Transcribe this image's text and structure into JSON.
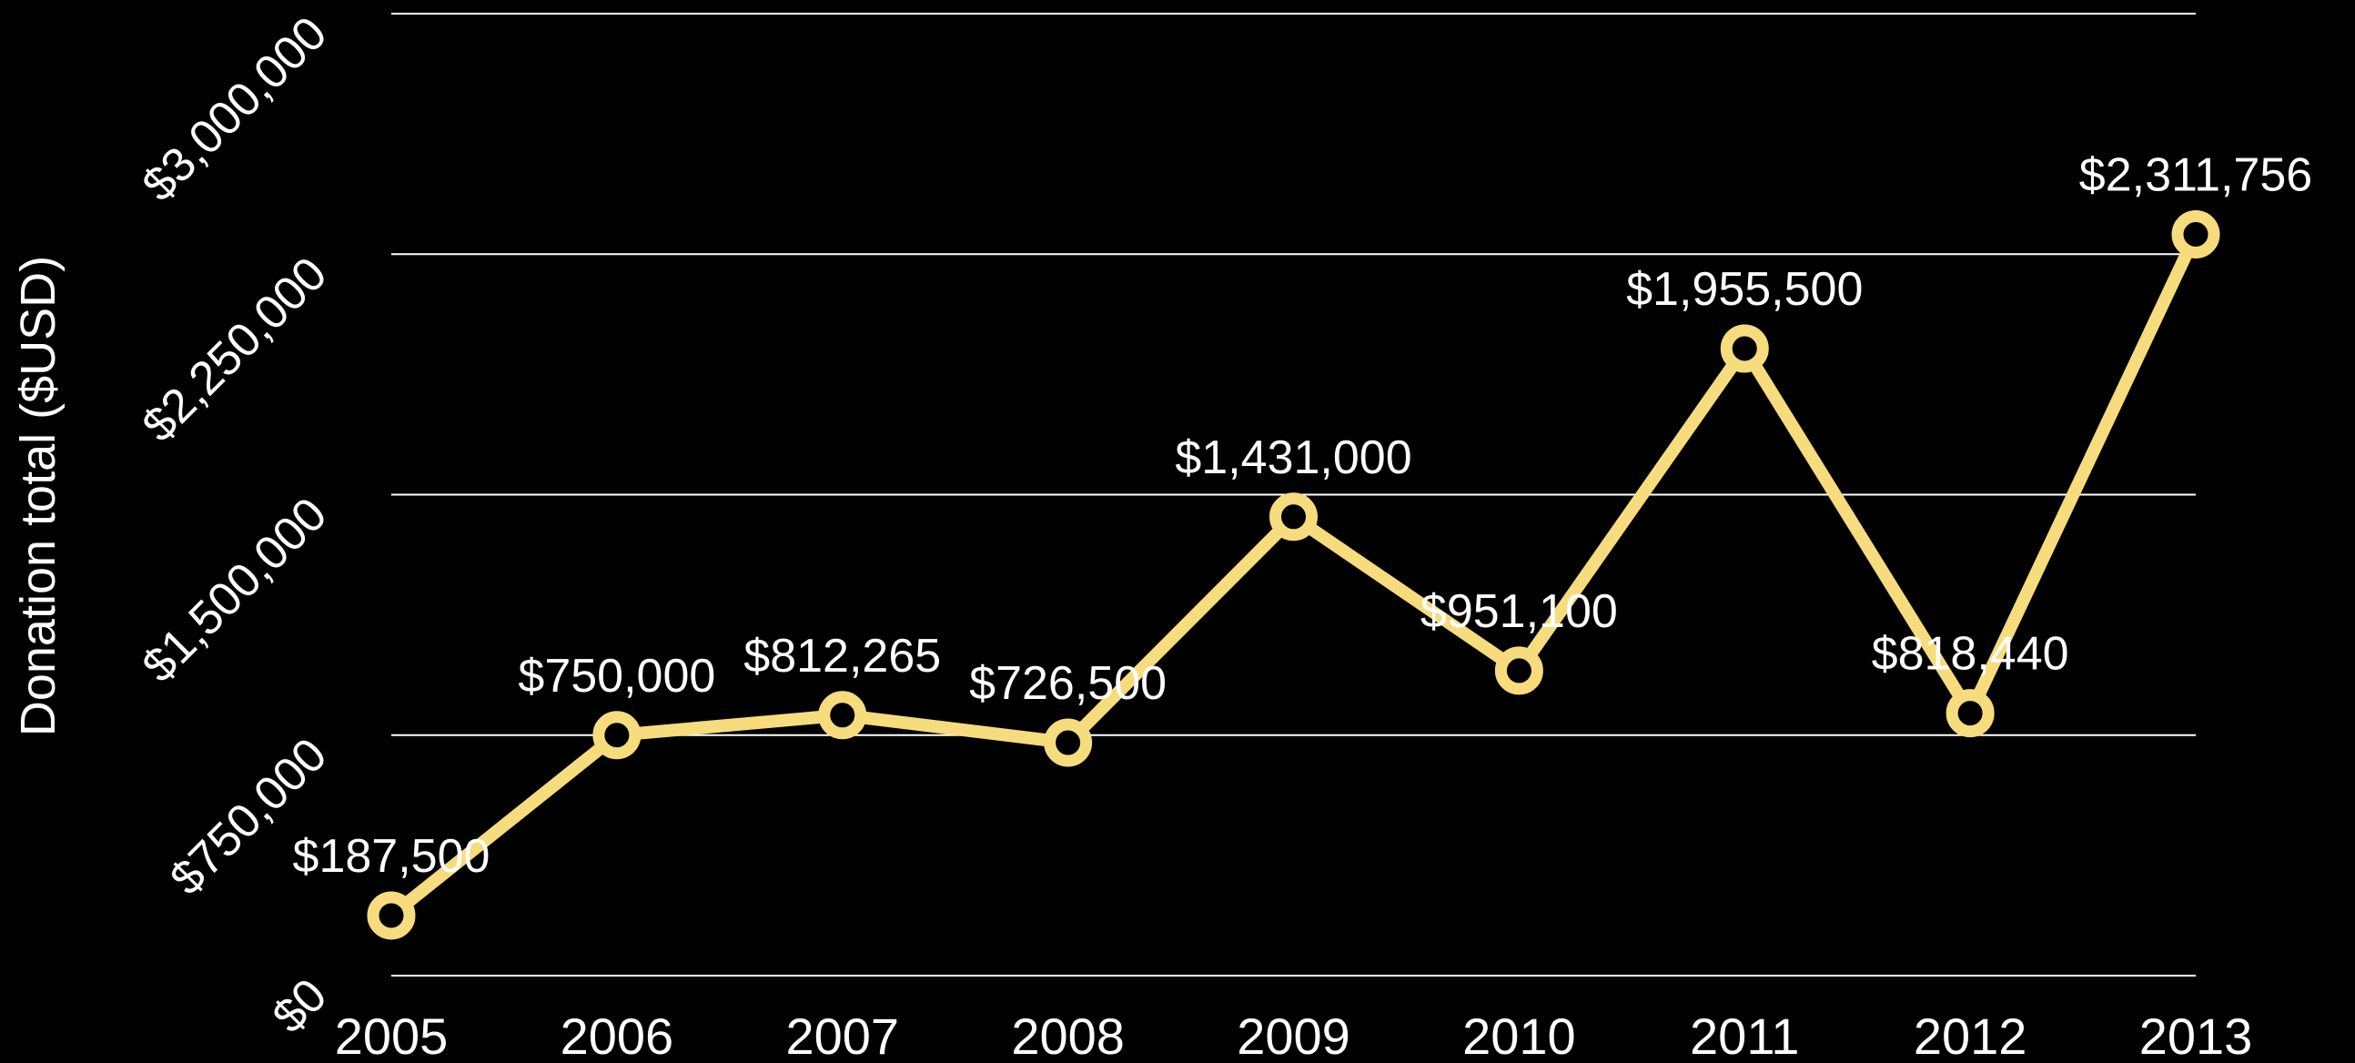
{
  "chart_data": {
    "type": "line",
    "title": "",
    "xlabel": "",
    "ylabel": "Donation total ($USD)",
    "x": [
      "2005",
      "2006",
      "2007",
      "2008",
      "2009",
      "2010",
      "2011",
      "2012",
      "2013"
    ],
    "series": [
      {
        "values": [
          187500,
          750000,
          812265,
          726500,
          1431000,
          951100,
          1955500,
          818440,
          2311756
        ],
        "data_labels": [
          "$187,500",
          "$750,000",
          "$812,265",
          "$726,500",
          "$1,431,000",
          "$951,100",
          "$1,955,500",
          "$818,440",
          "$2,311,756"
        ]
      }
    ],
    "ylim": [
      0,
      3000000
    ],
    "y_ticks": [
      0,
      750000,
      1500000,
      2250000,
      3000000
    ],
    "y_tick_labels": [
      "$0",
      "$750,000",
      "$1,500,000",
      "$2,250,000",
      "$3,000,000"
    ],
    "grid": true,
    "legend": "none",
    "colors": {
      "background": "#000000",
      "line": "#F7DC7D",
      "marker_fill": "#000000",
      "grid": "#FFFFFF",
      "text": "#FFFFFF"
    }
  }
}
